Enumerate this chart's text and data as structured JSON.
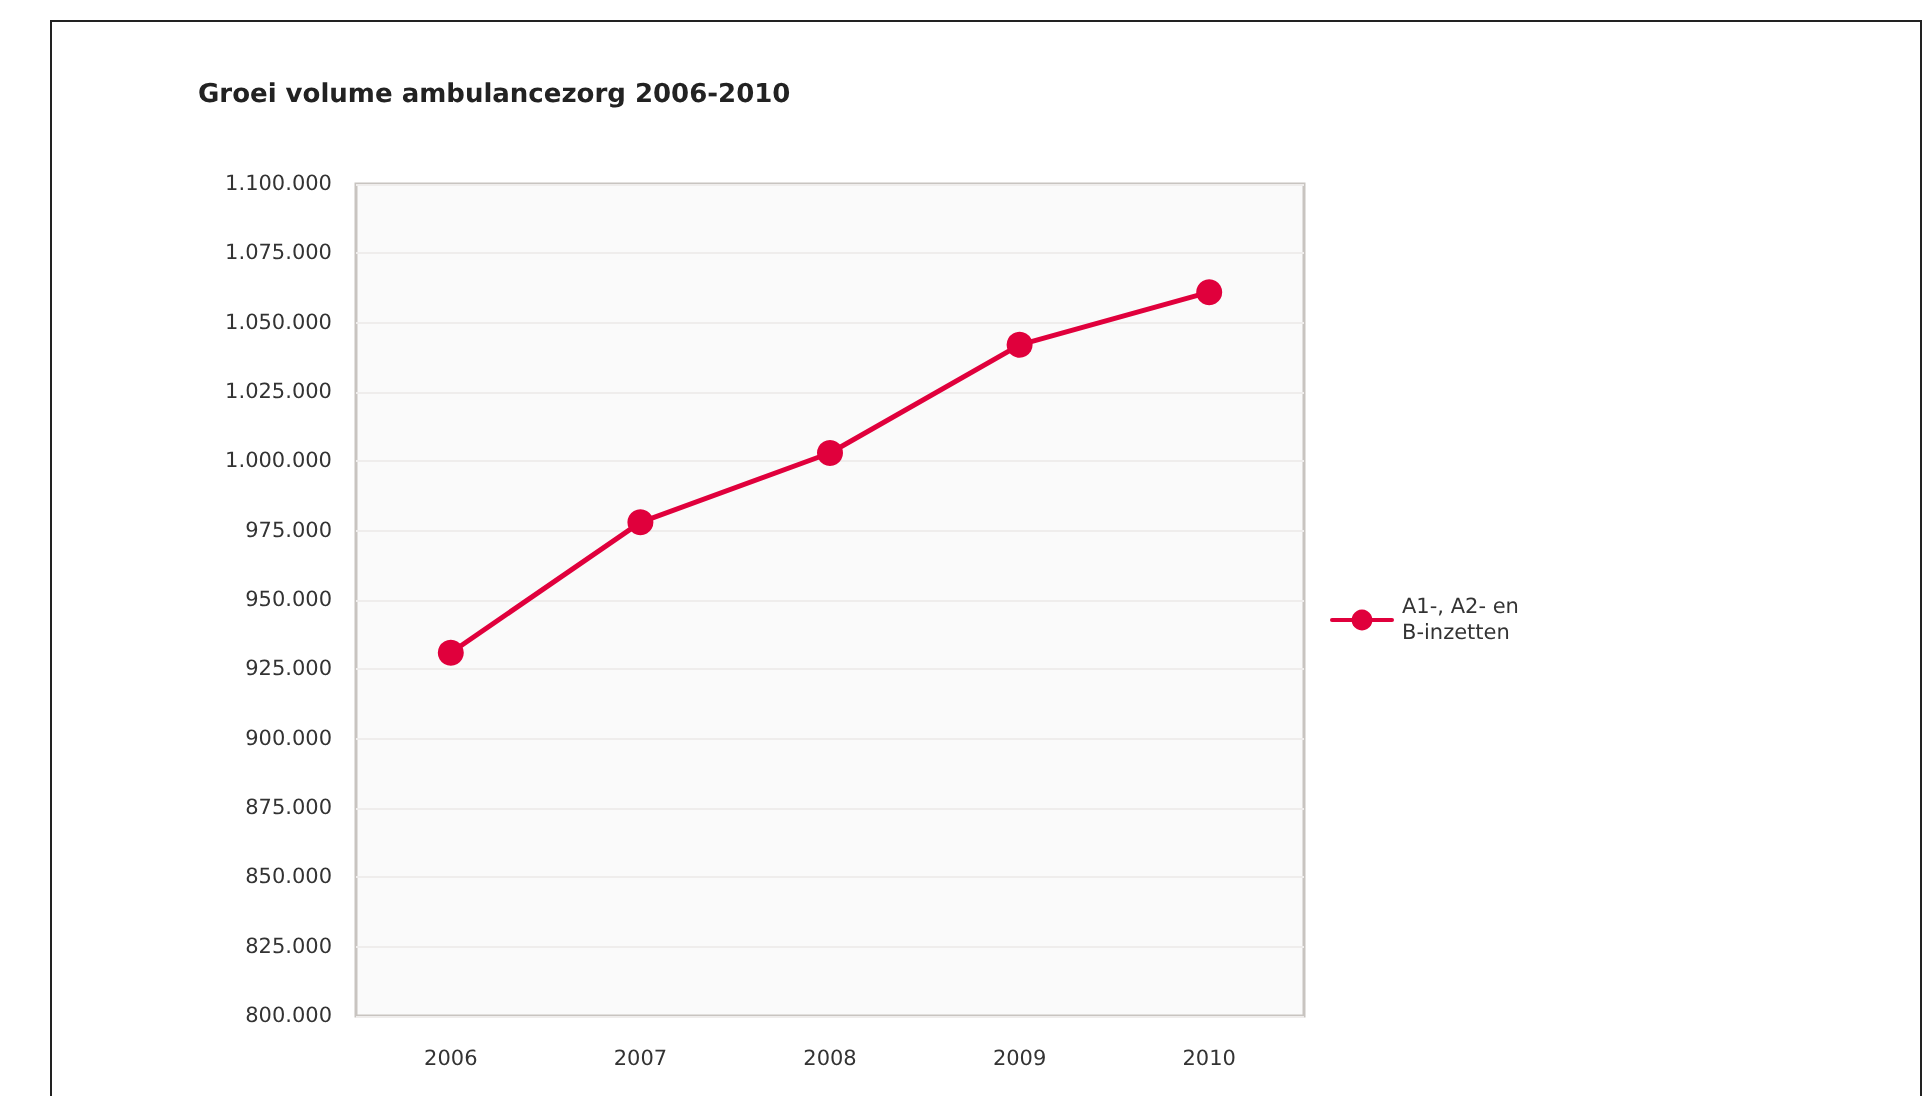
{
  "chart_data": {
    "type": "line",
    "title": "Groei volume ambulancezorg 2006-2010",
    "categories": [
      "2006",
      "2007",
      "2008",
      "2009",
      "2010"
    ],
    "series": [
      {
        "name": "A1-, A2- en B-inzetten",
        "color": "#e0003c",
        "values": [
          931000,
          978000,
          1003000,
          1042000,
          1061000
        ]
      }
    ],
    "ylim": [
      800000,
      1100000
    ],
    "yticks": [
      {
        "value": 800000,
        "label": "800.000"
      },
      {
        "value": 825000,
        "label": "825.000"
      },
      {
        "value": 850000,
        "label": "850.000"
      },
      {
        "value": 875000,
        "label": "875.000"
      },
      {
        "value": 900000,
        "label": "900.000"
      },
      {
        "value": 925000,
        "label": "925.000"
      },
      {
        "value": 950000,
        "label": "950.000"
      },
      {
        "value": 975000,
        "label": "975.000"
      },
      {
        "value": 1000000,
        "label": "1.000.000"
      },
      {
        "value": 1025000,
        "label": "1.025.000"
      },
      {
        "value": 1050000,
        "label": "1.050.000"
      },
      {
        "value": 1075000,
        "label": "1.075.000"
      },
      {
        "value": 1100000,
        "label": "1.100.000"
      }
    ],
    "grid": "y",
    "legend": "right",
    "marker": "circle",
    "line_style": "solid"
  }
}
